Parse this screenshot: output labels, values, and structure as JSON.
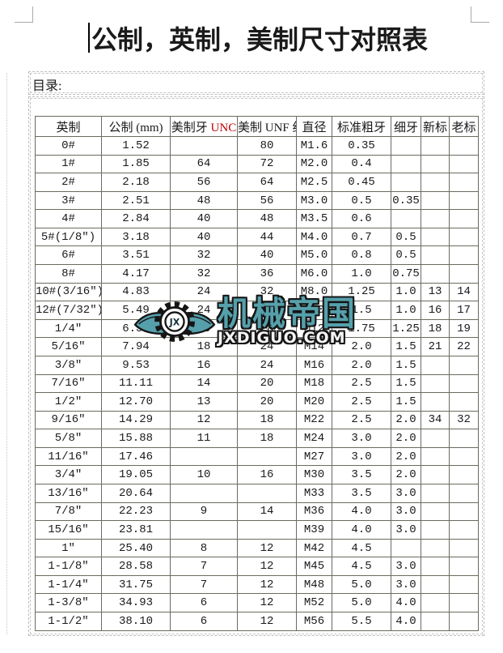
{
  "page": {
    "title": "公制，英制，美制尺寸对照表"
  },
  "toc": {
    "label": "目录:"
  },
  "watermark": {
    "monogram": "JX",
    "brand": "机械帝国",
    "domain": "JXDIGUO.COM",
    "teal": "#55a0ab"
  },
  "table": {
    "columns": [
      {
        "label": "英制"
      },
      {
        "label": "公制 (mm)"
      },
      {
        "label": "美制牙 ",
        "accent": "UNC"
      },
      {
        "label": "美制 UNF 细"
      },
      {
        "label": "直径"
      },
      {
        "label": "标准粗牙"
      },
      {
        "label": "细牙"
      },
      {
        "label": "新标"
      },
      {
        "label": "老标"
      }
    ],
    "rows": [
      [
        "0#",
        "1.52",
        "",
        "80",
        "M1.6",
        "0.35",
        "",
        "",
        ""
      ],
      [
        "1#",
        "1.85",
        "64",
        "72",
        "M2.0",
        "0.4",
        "",
        "",
        ""
      ],
      [
        "2#",
        "2.18",
        "56",
        "64",
        "M2.5",
        "0.45",
        "",
        "",
        ""
      ],
      [
        "3#",
        "2.51",
        "48",
        "56",
        "M3.0",
        "0.5",
        "0.35",
        "",
        ""
      ],
      [
        "4#",
        "2.84",
        "40",
        "48",
        "M3.5",
        "0.6",
        "",
        "",
        ""
      ],
      [
        "5#(1/8″)",
        "3.18",
        "40",
        "44",
        "M4.0",
        "0.7",
        "0.5",
        "",
        ""
      ],
      [
        "6#",
        "3.51",
        "32",
        "40",
        "M5.0",
        "0.8",
        "0.5",
        "",
        ""
      ],
      [
        "8#",
        "4.17",
        "32",
        "36",
        "M6.0",
        "1.0",
        "0.75",
        "",
        ""
      ],
      [
        "10#(3/16″)",
        "4.83",
        "24",
        "32",
        "M8.0",
        "1.25",
        "1.0",
        "13",
        "14"
      ],
      [
        "12#(7/32″)",
        "5.49",
        "24",
        "28",
        "M10",
        "1.5",
        "1.0",
        "16",
        "17"
      ],
      [
        "1/4″",
        "6.35",
        "20",
        "28",
        "M12",
        "1.75",
        "1.25",
        "18",
        "19"
      ],
      [
        "5/16″",
        "7.94",
        "18",
        "24",
        "M14",
        "2.0",
        "1.5",
        "21",
        "22"
      ],
      [
        "3/8″",
        "9.53",
        "16",
        "24",
        "M16",
        "2.0",
        "1.5",
        "",
        ""
      ],
      [
        "7/16″",
        "11.11",
        "14",
        "20",
        "M18",
        "2.5",
        "1.5",
        "",
        ""
      ],
      [
        "1/2″",
        "12.70",
        "13",
        "20",
        "M20",
        "2.5",
        "1.5",
        "",
        ""
      ],
      [
        "9/16″",
        "14.29",
        "12",
        "18",
        "M22",
        "2.5",
        "2.0",
        "34",
        "32"
      ],
      [
        "5/8″",
        "15.88",
        "11",
        "18",
        "M24",
        "3.0",
        "2.0",
        "",
        ""
      ],
      [
        "11/16″",
        "17.46",
        "",
        "",
        "M27",
        "3.0",
        "2.0",
        "",
        ""
      ],
      [
        "3/4″",
        "19.05",
        "10",
        "16",
        "M30",
        "3.5",
        "2.0",
        "",
        ""
      ],
      [
        "13/16″",
        "20.64",
        "",
        "",
        "M33",
        "3.5",
        "3.0",
        "",
        ""
      ],
      [
        "7/8″",
        "22.23",
        "9",
        "14",
        "M36",
        "4.0",
        "3.0",
        "",
        ""
      ],
      [
        "15/16″",
        "23.81",
        "",
        "",
        "M39",
        "4.0",
        "3.0",
        "",
        ""
      ],
      [
        "1″",
        "25.40",
        "8",
        "12",
        "M42",
        "4.5",
        "",
        "",
        ""
      ],
      [
        "1-1/8″",
        "28.58",
        "7",
        "12",
        "M45",
        "4.5",
        "3.0",
        "",
        ""
      ],
      [
        "1-1/4″",
        "31.75",
        "7",
        "12",
        "M48",
        "5.0",
        "3.0",
        "",
        ""
      ],
      [
        "1-3/8″",
        "34.93",
        "6",
        "12",
        "M52",
        "5.0",
        "4.0",
        "",
        ""
      ],
      [
        "1-1/2″",
        "38.10",
        "6",
        "12",
        "M56",
        "5.5",
        "4.0",
        "",
        ""
      ]
    ]
  }
}
